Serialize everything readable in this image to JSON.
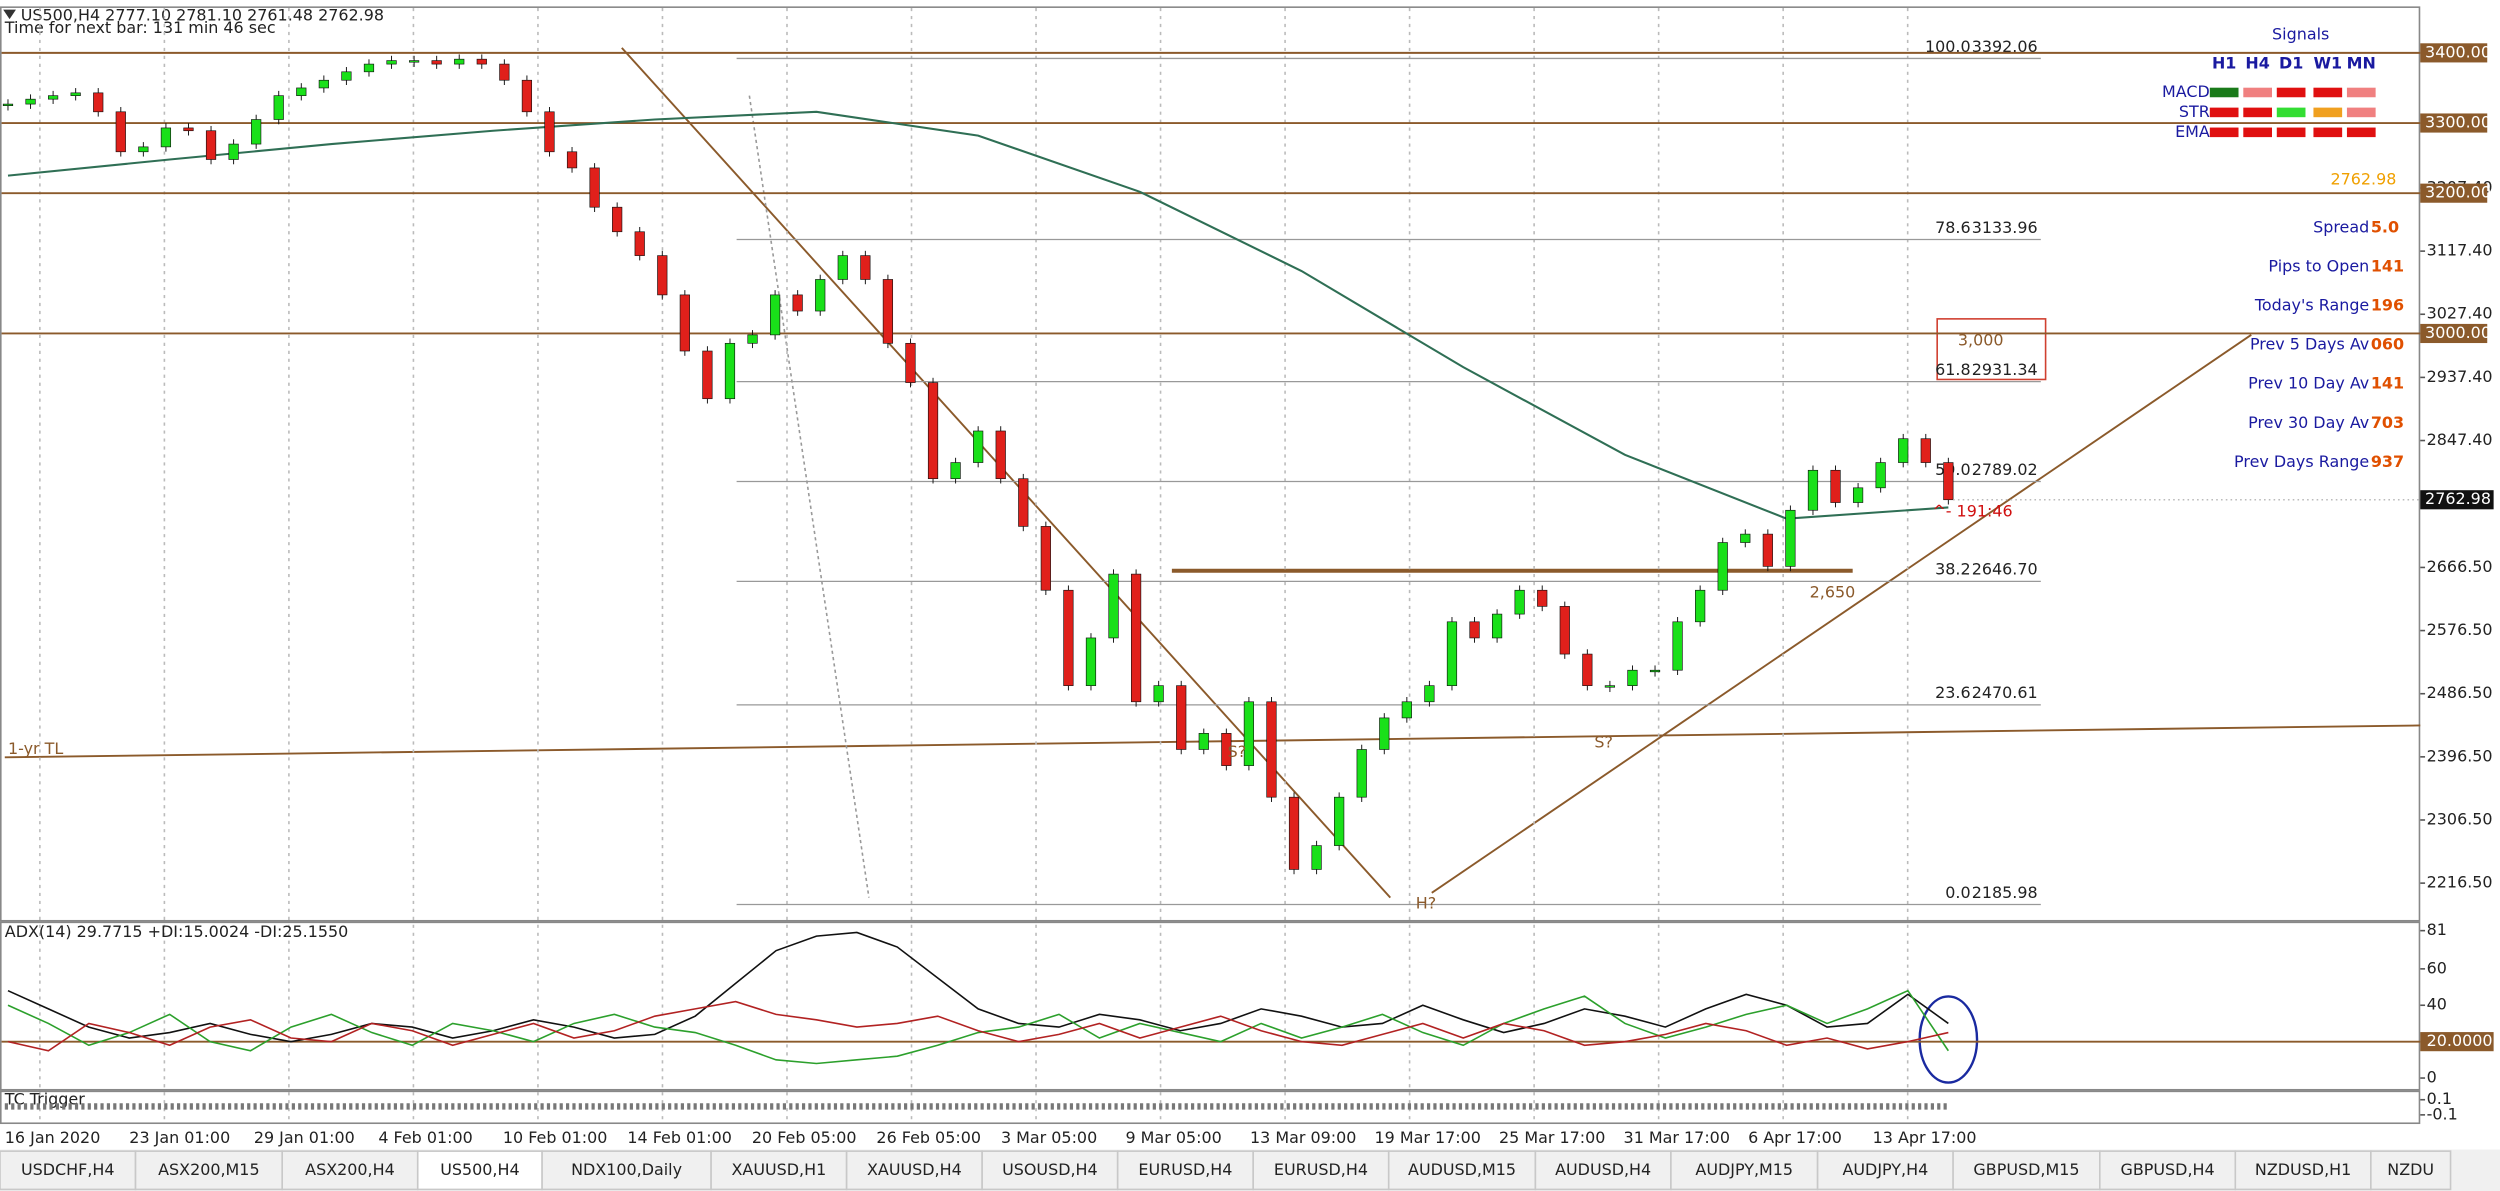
{
  "window": {
    "header": "US500,H4  2777.10 2781.10 2761.48 2762.98",
    "timer": "Time for next bar: 131 min 46 sec"
  },
  "chart_data": {
    "type": "candlestick",
    "closes": [
      3327,
      3334,
      3339,
      3343,
      3316,
      3259,
      3266,
      3293,
      3289,
      3248,
      3270,
      3305,
      3339,
      3350,
      3361,
      3373,
      3384,
      3389,
      3389,
      3384,
      3391,
      3384,
      3361,
      3316,
      3259,
      3236,
      3180,
      3145,
      3111,
      3055,
      2975,
      2907,
      2986,
      2998,
      3055,
      3032,
      3077,
      3111,
      3077,
      2986,
      2930,
      2793,
      2816,
      2861,
      2793,
      2725,
      2634,
      2498,
      2566,
      2657,
      2475,
      2498,
      2407,
      2430,
      2384,
      2475,
      2339,
      2236,
      2270,
      2339,
      2407,
      2452,
      2475,
      2498,
      2589,
      2566,
      2600,
      2634,
      2611,
      2543,
      2498,
      2498,
      2520,
      2520,
      2589,
      2634,
      2702,
      2714,
      2668,
      2748,
      2805,
      2759,
      2780,
      2816,
      2850,
      2816,
      2763
    ],
    "ma": [
      3225,
      3248,
      3270,
      3289,
      3305,
      3316,
      3282,
      3202,
      3089,
      2952,
      2827,
      2736,
      2752
    ],
    "ylim": [
      2164,
      3464
    ],
    "yticks": [
      {
        "value": 3207.4,
        "label": "3207.40"
      },
      {
        "value": 3117.4,
        "label": "3117.40"
      },
      {
        "value": 3027.4,
        "label": "3027.40"
      },
      {
        "value": 2937.4,
        "label": "2937.40"
      },
      {
        "value": 2847.4,
        "label": "2847.40"
      },
      {
        "value": 2666.5,
        "label": "2666.50"
      },
      {
        "value": 2576.5,
        "label": "2576.50"
      },
      {
        "value": 2486.5,
        "label": "2486.50"
      },
      {
        "value": 2396.5,
        "label": "2396.50"
      },
      {
        "value": 2306.5,
        "label": "2306.50"
      },
      {
        "value": 2216.5,
        "label": "2216.50"
      }
    ],
    "levels": [
      {
        "value": 3400,
        "label": "3400.00"
      },
      {
        "value": 3300,
        "label": "3300.00"
      },
      {
        "value": 3200,
        "label": "3200.00"
      },
      {
        "value": 3000,
        "label": "3000.00"
      }
    ],
    "current_price": 2762.98,
    "fib": [
      {
        "level": {
          "value": 100,
          "label": "100.0"
        },
        "price": 3392.06
      },
      {
        "level": 78.6,
        "price": 3133.96
      },
      {
        "level": 61.8,
        "price": 2931.34
      },
      {
        "level": {
          "value": 50,
          "label": "50.0"
        },
        "price": 2789.02
      },
      {
        "level": 38.2,
        "price": {
          "value": 2646.7,
          "label": "2646.70"
        }
      },
      {
        "level": 23.6,
        "price": 2470.61
      },
      {
        "level": {
          "value": 0,
          "label": "0.0"
        },
        "price": 2185.98
      }
    ],
    "x_labels": [
      "16 Jan 2020",
      "23 Jan 01:00",
      "29 Jan 01:00",
      "4 Feb 01:00",
      "10 Feb 01:00",
      "14 Feb 01:00",
      "20 Feb 05:00",
      "26 Feb 05:00",
      "3 Mar 05:00",
      "9 Mar 05:00",
      "13 Mar 09:00",
      "19 Mar 17:00",
      "25 Mar 17:00",
      "31 Mar 17:00",
      "6 Apr 17:00",
      "13 Apr 17:00"
    ],
    "annotations": [
      "1-yr TL",
      "S?",
      "H?",
      "S?",
      "2,650",
      "3,000",
      "^- 191:46"
    ],
    "colors": {
      "up": "#19e019",
      "down": "#e0201b",
      "ma": "#2f6f55",
      "level": "#8b5a2b"
    }
  },
  "adx": {
    "title": "ADX(14) 29.7715 +DI:15.0024 -DI:25.1550",
    "ylim": [
      -6,
      86
    ],
    "yticks": [
      81,
      60,
      40,
      {
        "value": 20,
        "label": "20.0000"
      },
      0
    ],
    "series": [
      {
        "color": "#111111",
        "values": [
          48,
          38,
          28,
          22,
          25,
          30,
          24,
          20,
          24,
          30,
          28,
          22,
          26,
          32,
          28,
          22,
          24,
          34,
          52,
          70,
          78,
          80,
          72,
          55,
          38,
          30,
          28,
          35,
          32,
          26,
          30,
          38,
          34,
          28,
          30,
          40,
          32,
          25,
          30,
          38,
          34,
          28,
          38,
          46,
          40,
          28,
          30,
          46,
          30
        ]
      },
      {
        "color": "#2ca02c",
        "values": [
          40,
          30,
          18,
          25,
          35,
          20,
          15,
          28,
          35,
          25,
          18,
          30,
          26,
          20,
          30,
          35,
          28,
          25,
          18,
          10,
          8,
          10,
          12,
          18,
          25,
          28,
          35,
          22,
          30,
          25,
          20,
          30,
          22,
          28,
          35,
          25,
          18,
          30,
          38,
          45,
          30,
          22,
          28,
          35,
          40,
          30,
          38,
          48,
          15
        ]
      },
      {
        "color": "#b22222",
        "values": [
          20,
          15,
          30,
          25,
          18,
          28,
          32,
          22,
          20,
          30,
          26,
          18,
          24,
          30,
          22,
          26,
          34,
          38,
          42,
          35,
          32,
          28,
          30,
          34,
          26,
          20,
          24,
          30,
          22,
          28,
          34,
          26,
          20,
          18,
          24,
          30,
          22,
          30,
          26,
          18,
          20,
          24,
          30,
          26,
          18,
          22,
          16,
          20,
          25
        ]
      }
    ]
  },
  "trigger": {
    "title": "TC Trigger",
    "ylim": [
      -0.2,
      0.2
    ],
    "yticks": [
      0.1,
      -0.1
    ]
  },
  "signals": {
    "title": "Signals",
    "columns": [
      "H1",
      "H4",
      "D1",
      "W1",
      "MN"
    ],
    "rows": [
      {
        "name": "MACD",
        "colors": [
          "#1a7a1a",
          "#f08080",
          "#e01010",
          "#e01010",
          "#f08080"
        ]
      },
      {
        "name": "STR",
        "colors": [
          "#e01010",
          "#e01010",
          "#33dd33",
          "#f0a020",
          "#f08080"
        ]
      },
      {
        "name": "EMA",
        "colors": [
          "#e01010",
          "#e01010",
          "#e01010",
          "#e01010",
          "#e01010"
        ]
      }
    ]
  },
  "price": {
    "value": 2762.98,
    "label": "2762.98"
  },
  "info": [
    {
      "label": "Spread",
      "value": "5.0"
    },
    {
      "label": "Pips to Open",
      "value": "141"
    },
    {
      "label": "Today's Range",
      "value": "196"
    },
    {
      "label": "Prev 5 Days Av",
      "value": "060"
    },
    {
      "label": "Prev 10 Day Av",
      "value": "141"
    },
    {
      "label": "Prev 30 Day Av",
      "value": "703"
    },
    {
      "label": "Prev Days Range",
      "value": "937"
    }
  ],
  "tabs": [
    "USDCHF,H4",
    "ASX200,M15",
    "ASX200,H4",
    "US500,H4",
    "NDX100,Daily",
    "XAUUSD,H1",
    "XAUUSD,H4",
    "USOUSD,H4",
    "EURUSD,H4",
    "EURUSD,H4",
    "AUDUSD,M15",
    "AUDUSD,H4",
    "AUDJPY,M15",
    "AUDJPY,H4",
    "GBPUSD,M15",
    "GBPUSD,H4",
    "NZDUSD,H1",
    "NZDU"
  ],
  "active_tab": 3
}
